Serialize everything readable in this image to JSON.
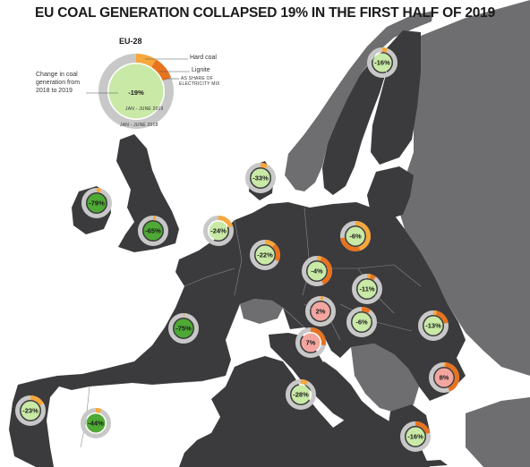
{
  "title": "EU COAL GENERATION COLLAPSED 19% IN THE FIRST HALF OF 2019",
  "legend": {
    "region": "EU-28",
    "value": "-19%",
    "hard_coal_label": "Hard coal",
    "lignite_label": "Lignite",
    "change_label_line1": "Change in coal",
    "change_label_line2": "generation from",
    "change_label_line3": "2018 to 2019",
    "share_label_line1": "AS SHARE OF",
    "share_label_line2": "ELECTRICITY MIX",
    "period_label": "JAN - JUNE 2019",
    "period_label_2": "JAN - JUNE 2018"
  },
  "colors": {
    "hard_coal": "#f7a73b",
    "lignite": "#e8731e",
    "decrease_fill": "#c9e9a6",
    "increase_fill": "#f3a6a0",
    "strong_decrease_fill": "#4ea935",
    "ring": "#c8c8c8",
    "land_eu": "#3b3b3d",
    "land_non_eu": "#6e6e70",
    "sea": "#ffffff"
  },
  "countries": [
    {
      "name": "Finland",
      "change": "-16%",
      "hard_coal_share": 0.06,
      "lignite_share": 0.0,
      "fill": "decrease"
    },
    {
      "name": "Denmark",
      "change": "-33%",
      "hard_coal_share": 0.08,
      "lignite_share": 0.0,
      "fill": "decrease"
    },
    {
      "name": "Ireland",
      "change": "-79%",
      "hard_coal_share": 0.05,
      "lignite_share": 0.0,
      "fill": "strong"
    },
    {
      "name": "United Kingdom",
      "change": "-65%",
      "hard_coal_share": 0.03,
      "lignite_share": 0.0,
      "fill": "strong"
    },
    {
      "name": "Netherlands",
      "change": "-24%",
      "hard_coal_share": 0.2,
      "lignite_share": 0.0,
      "fill": "decrease"
    },
    {
      "name": "Germany",
      "change": "-22%",
      "hard_coal_share": 0.12,
      "lignite_share": 0.2,
      "fill": "decrease"
    },
    {
      "name": "Poland",
      "change": "-6%",
      "hard_coal_share": 0.45,
      "lignite_share": 0.28,
      "fill": "decrease"
    },
    {
      "name": "Czechia",
      "change": "-4%",
      "hard_coal_share": 0.05,
      "lignite_share": 0.38,
      "fill": "decrease"
    },
    {
      "name": "Slovakia",
      "change": "-11%",
      "hard_coal_share": 0.04,
      "lignite_share": 0.06,
      "fill": "decrease"
    },
    {
      "name": "Austria",
      "change": "2%",
      "hard_coal_share": 0.03,
      "lignite_share": 0.0,
      "fill": "increase"
    },
    {
      "name": "Hungary",
      "change": "-6%",
      "hard_coal_share": 0.0,
      "lignite_share": 0.1,
      "fill": "decrease"
    },
    {
      "name": "Slovenia",
      "change": "7%",
      "hard_coal_share": 0.0,
      "lignite_share": 0.28,
      "fill": "increase"
    },
    {
      "name": "Romania",
      "change": "-13%",
      "hard_coal_share": 0.04,
      "lignite_share": 0.18,
      "fill": "decrease"
    },
    {
      "name": "Bulgaria",
      "change": "8%",
      "hard_coal_share": 0.02,
      "lignite_share": 0.42,
      "fill": "increase"
    },
    {
      "name": "France",
      "change": "-75%",
      "hard_coal_share": 0.01,
      "lignite_share": 0.0,
      "fill": "strong"
    },
    {
      "name": "Portugal",
      "change": "-23%",
      "hard_coal_share": 0.17,
      "lignite_share": 0.0,
      "fill": "decrease"
    },
    {
      "name": "Spain",
      "change": "-44%",
      "hard_coal_share": 0.06,
      "lignite_share": 0.0,
      "fill": "strong"
    },
    {
      "name": "Italy",
      "change": "-28%",
      "hard_coal_share": 0.08,
      "lignite_share": 0.0,
      "fill": "decrease"
    },
    {
      "name": "Greece",
      "change": "-16%",
      "hard_coal_share": 0.0,
      "lignite_share": 0.21,
      "fill": "decrease"
    }
  ]
}
